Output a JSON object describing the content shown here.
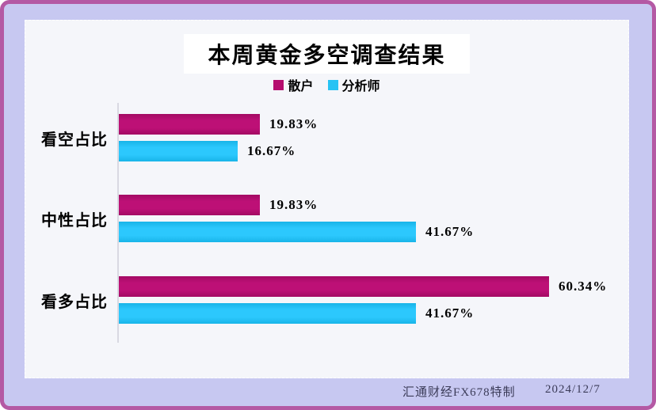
{
  "title": "本周黄金多空调查结果",
  "colors": {
    "background": "#c7c8f1",
    "frame_border": "#b459a4",
    "card_background": "#f5f6fa",
    "series_retail": "#b50d6f",
    "series_analyst": "#27c3f4",
    "footer_text": "#3b3b58"
  },
  "legend": [
    {
      "label": "散户",
      "color": "#b50d6f"
    },
    {
      "label": "分析师",
      "color": "#27c3f4"
    }
  ],
  "footer": {
    "brand": "汇通财经FX678特制",
    "date": "2024/12/7"
  },
  "chart_data": {
    "type": "bar",
    "orientation": "horizontal",
    "title": "本周黄金多空调查结果",
    "categories": [
      "看空占比",
      "中性占比",
      "看多占比"
    ],
    "series": [
      {
        "name": "散户",
        "color": "#b50d6f",
        "values": [
          19.83,
          19.83,
          60.34
        ]
      },
      {
        "name": "分析师",
        "color": "#27c3f4",
        "values": [
          16.67,
          41.67,
          41.67
        ]
      }
    ],
    "value_suffix": "%",
    "xlim": [
      0,
      70
    ],
    "grid": false,
    "legend_position": "top",
    "value_labels": "outside-end"
  }
}
